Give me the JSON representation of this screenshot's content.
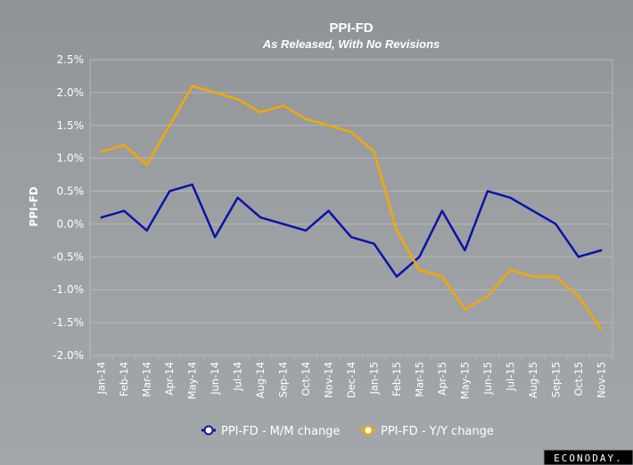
{
  "chart_data": {
    "type": "line",
    "title": "PPI-FD",
    "subtitle": "As Released, With No Revisions",
    "ylabel": "PPI-FD",
    "xlabel": "",
    "ylim": [
      -2.0,
      2.5
    ],
    "y_ticks": [
      "2.5%",
      "2.0%",
      "1.5%",
      "1.0%",
      "0.5%",
      "0.0%",
      "-0.5%",
      "-1.0%",
      "-1.5%",
      "-2.0%"
    ],
    "y_tick_values": [
      2.5,
      2.0,
      1.5,
      1.0,
      0.5,
      0.0,
      -0.5,
      -1.0,
      -1.5,
      -2.0
    ],
    "grid": true,
    "legend_position": "bottom",
    "categories": [
      "Jan-14",
      "Feb-14",
      "Mar-14",
      "Apr-14",
      "May-14",
      "Jun-14",
      "Jul-14",
      "Aug-14",
      "Sep-14",
      "Oct-14",
      "Nov-14",
      "Dec-14",
      "Jan-15",
      "Feb-15",
      "Mar-15",
      "Apr-15",
      "May-15",
      "Jun-15",
      "Jul-15",
      "Aug-15",
      "Sep-15",
      "Oct-15",
      "Nov-15"
    ],
    "series": [
      {
        "name": "PPI-FD - M/M change",
        "color": "#0a14a8",
        "values": [
          0.1,
          0.2,
          -0.1,
          0.5,
          0.6,
          -0.2,
          0.4,
          0.1,
          0.0,
          -0.1,
          0.2,
          -0.2,
          -0.3,
          -0.8,
          -0.5,
          0.2,
          -0.4,
          0.5,
          0.4,
          0.2,
          0.0,
          -0.5,
          -0.4
        ]
      },
      {
        "name": "PPI-FD - Y/Y change",
        "color": "#f4a800",
        "values": [
          1.1,
          1.2,
          0.9,
          1.5,
          2.1,
          2.0,
          1.9,
          1.7,
          1.8,
          1.6,
          1.5,
          1.4,
          1.1,
          -0.1,
          -0.7,
          -0.8,
          -1.3,
          -1.1,
          -0.7,
          -0.8,
          -0.8,
          -1.1,
          -1.6
        ]
      }
    ]
  },
  "brand": {
    "text": "ECONODAY."
  }
}
